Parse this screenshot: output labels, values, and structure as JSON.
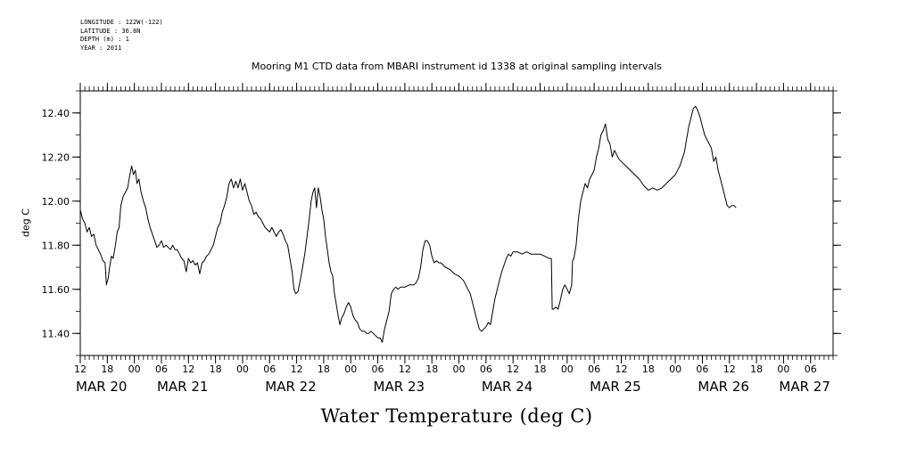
{
  "header": {
    "meta_lines": [
      "LONGITUDE : 122W(-122)",
      "LATITUDE : 36.8N",
      "DEPTH (m) : 1",
      "YEAR : 2011"
    ]
  },
  "chart_data": {
    "type": "line",
    "title": "Mooring M1 CTD data from MBARI instrument id 1338 at original sampling intervals",
    "xlabel": "Water Temperature (deg C)",
    "ylabel": "deg C",
    "ylim": [
      11.3,
      12.5
    ],
    "y_ticks": [
      11.4,
      11.6,
      11.8,
      12.0,
      12.2,
      12.4
    ],
    "y_tick_labels": [
      "11.40",
      "11.60",
      "11.80",
      "12.00",
      "12.20",
      "12.40"
    ],
    "x_unit": "hours from 2011-03-20 12:00",
    "xlim": [
      0,
      167
    ],
    "hour_ticks": [
      {
        "h": 0,
        "label": "12"
      },
      {
        "h": 6,
        "label": "18"
      },
      {
        "h": 12,
        "label": "00"
      },
      {
        "h": 18,
        "label": "06"
      },
      {
        "h": 24,
        "label": "12"
      },
      {
        "h": 30,
        "label": "18"
      },
      {
        "h": 36,
        "label": "00"
      },
      {
        "h": 42,
        "label": "06"
      },
      {
        "h": 48,
        "label": "12"
      },
      {
        "h": 54,
        "label": "18"
      },
      {
        "h": 60,
        "label": "00"
      },
      {
        "h": 66,
        "label": "06"
      },
      {
        "h": 72,
        "label": "12"
      },
      {
        "h": 78,
        "label": "18"
      },
      {
        "h": 84,
        "label": "00"
      },
      {
        "h": 90,
        "label": "06"
      },
      {
        "h": 96,
        "label": "12"
      },
      {
        "h": 102,
        "label": "18"
      },
      {
        "h": 108,
        "label": "00"
      },
      {
        "h": 114,
        "label": "06"
      },
      {
        "h": 120,
        "label": "12"
      },
      {
        "h": 126,
        "label": "18"
      },
      {
        "h": 132,
        "label": "00"
      },
      {
        "h": 138,
        "label": "06"
      },
      {
        "h": 144,
        "label": "12"
      },
      {
        "h": 150,
        "label": "18"
      },
      {
        "h": 156,
        "label": "00"
      },
      {
        "h": 162,
        "label": "06"
      }
    ],
    "date_labels": [
      {
        "h": 0,
        "label": "MAR 20"
      },
      {
        "h": 18,
        "label": "MAR 21"
      },
      {
        "h": 42,
        "label": "MAR 22"
      },
      {
        "h": 66,
        "label": "MAR 23"
      },
      {
        "h": 90,
        "label": "MAR 24"
      },
      {
        "h": 114,
        "label": "MAR 25"
      },
      {
        "h": 138,
        "label": "MAR 26"
      },
      {
        "h": 156,
        "label": "MAR 27"
      }
    ],
    "grid": false,
    "series": [
      {
        "color": "#000000",
        "points": [
          [
            0.0,
            11.96
          ],
          [
            0.5,
            11.92
          ],
          [
            1.0,
            11.9
          ],
          [
            1.5,
            11.86
          ],
          [
            2.0,
            11.88
          ],
          [
            2.5,
            11.84
          ],
          [
            3.0,
            11.85
          ],
          [
            3.5,
            11.8
          ],
          [
            4.0,
            11.78
          ],
          [
            4.5,
            11.76
          ],
          [
            5.0,
            11.73
          ],
          [
            5.5,
            11.72
          ],
          [
            5.8,
            11.62
          ],
          [
            6.2,
            11.65
          ],
          [
            6.5,
            11.7
          ],
          [
            6.9,
            11.75
          ],
          [
            7.3,
            11.74
          ],
          [
            7.8,
            11.8
          ],
          [
            8.2,
            11.86
          ],
          [
            8.6,
            11.88
          ],
          [
            9.0,
            11.98
          ],
          [
            9.5,
            12.02
          ],
          [
            10.0,
            12.04
          ],
          [
            10.5,
            12.06
          ],
          [
            11.0,
            12.12
          ],
          [
            11.4,
            12.16
          ],
          [
            11.8,
            12.12
          ],
          [
            12.2,
            12.14
          ],
          [
            12.6,
            12.08
          ],
          [
            13.0,
            12.1
          ],
          [
            13.5,
            12.04
          ],
          [
            14.0,
            12.0
          ],
          [
            14.5,
            11.97
          ],
          [
            15.0,
            11.92
          ],
          [
            15.5,
            11.88
          ],
          [
            16.0,
            11.85
          ],
          [
            16.5,
            11.82
          ],
          [
            17.0,
            11.79
          ],
          [
            17.5,
            11.8
          ],
          [
            18.0,
            11.82
          ],
          [
            18.5,
            11.79
          ],
          [
            19.0,
            11.8
          ],
          [
            19.5,
            11.79
          ],
          [
            20.0,
            11.78
          ],
          [
            20.5,
            11.8
          ],
          [
            21.0,
            11.78
          ],
          [
            21.5,
            11.78
          ],
          [
            22.0,
            11.76
          ],
          [
            22.5,
            11.74
          ],
          [
            23.0,
            11.73
          ],
          [
            23.5,
            11.68
          ],
          [
            24.0,
            11.74
          ],
          [
            24.5,
            11.72
          ],
          [
            25.0,
            11.73
          ],
          [
            25.5,
            11.71
          ],
          [
            26.0,
            11.72
          ],
          [
            26.5,
            11.67
          ],
          [
            27.0,
            11.72
          ],
          [
            27.5,
            11.73
          ],
          [
            28.0,
            11.75
          ],
          [
            28.5,
            11.76
          ],
          [
            29.0,
            11.78
          ],
          [
            29.5,
            11.8
          ],
          [
            30.0,
            11.84
          ],
          [
            30.5,
            11.88
          ],
          [
            31.0,
            11.9
          ],
          [
            31.5,
            11.95
          ],
          [
            32.0,
            11.98
          ],
          [
            32.5,
            12.02
          ],
          [
            33.0,
            12.08
          ],
          [
            33.5,
            12.1
          ],
          [
            34.0,
            12.06
          ],
          [
            34.5,
            12.09
          ],
          [
            35.0,
            12.06
          ],
          [
            35.5,
            12.1
          ],
          [
            36.0,
            12.05
          ],
          [
            36.5,
            12.08
          ],
          [
            37.0,
            12.04
          ],
          [
            37.5,
            12.0
          ],
          [
            38.0,
            11.98
          ],
          [
            38.5,
            11.94
          ],
          [
            39.0,
            11.95
          ],
          [
            39.5,
            11.93
          ],
          [
            40.0,
            11.92
          ],
          [
            40.5,
            11.9
          ],
          [
            41.0,
            11.88
          ],
          [
            41.5,
            11.87
          ],
          [
            42.0,
            11.86
          ],
          [
            42.5,
            11.88
          ],
          [
            43.0,
            11.86
          ],
          [
            43.5,
            11.84
          ],
          [
            44.0,
            11.86
          ],
          [
            44.5,
            11.87
          ],
          [
            45.0,
            11.85
          ],
          [
            45.5,
            11.82
          ],
          [
            46.0,
            11.8
          ],
          [
            46.5,
            11.74
          ],
          [
            47.0,
            11.68
          ],
          [
            47.4,
            11.6
          ],
          [
            47.8,
            11.58
          ],
          [
            48.3,
            11.59
          ],
          [
            48.8,
            11.64
          ],
          [
            49.3,
            11.7
          ],
          [
            49.8,
            11.76
          ],
          [
            50.3,
            11.84
          ],
          [
            50.8,
            11.92
          ],
          [
            51.2,
            12.0
          ],
          [
            51.6,
            12.04
          ],
          [
            52.0,
            12.06
          ],
          [
            52.4,
            11.97
          ],
          [
            52.8,
            12.06
          ],
          [
            53.2,
            12.02
          ],
          [
            53.6,
            11.96
          ],
          [
            54.0,
            11.92
          ],
          [
            54.4,
            11.84
          ],
          [
            54.8,
            11.78
          ],
          [
            55.2,
            11.72
          ],
          [
            55.6,
            11.68
          ],
          [
            56.0,
            11.66
          ],
          [
            56.4,
            11.58
          ],
          [
            56.8,
            11.53
          ],
          [
            57.2,
            11.48
          ],
          [
            57.6,
            11.44
          ],
          [
            58.0,
            11.47
          ],
          [
            58.5,
            11.49
          ],
          [
            59.0,
            11.52
          ],
          [
            59.5,
            11.54
          ],
          [
            60.0,
            11.52
          ],
          [
            60.5,
            11.48
          ],
          [
            61.0,
            11.46
          ],
          [
            61.5,
            11.45
          ],
          [
            62.0,
            11.42
          ],
          [
            62.5,
            11.41
          ],
          [
            63.0,
            11.41
          ],
          [
            63.5,
            11.4
          ],
          [
            64.0,
            11.4
          ],
          [
            64.5,
            11.41
          ],
          [
            65.0,
            11.4
          ],
          [
            65.5,
            11.39
          ],
          [
            66.0,
            11.38
          ],
          [
            66.5,
            11.38
          ],
          [
            67.0,
            11.36
          ],
          [
            67.5,
            11.42
          ],
          [
            68.0,
            11.46
          ],
          [
            68.5,
            11.5
          ],
          [
            69.0,
            11.58
          ],
          [
            69.5,
            11.6
          ],
          [
            70.0,
            11.61
          ],
          [
            70.5,
            11.6
          ],
          [
            71.0,
            11.61
          ],
          [
            72.0,
            11.61
          ],
          [
            73.0,
            11.62
          ],
          [
            74.0,
            11.62
          ],
          [
            74.5,
            11.63
          ],
          [
            75.0,
            11.65
          ],
          [
            75.5,
            11.7
          ],
          [
            76.0,
            11.78
          ],
          [
            76.5,
            11.82
          ],
          [
            77.0,
            11.82
          ],
          [
            77.5,
            11.8
          ],
          [
            78.0,
            11.75
          ],
          [
            78.5,
            11.72
          ],
          [
            79.0,
            11.73
          ],
          [
            79.5,
            11.72
          ],
          [
            80.0,
            11.72
          ],
          [
            81.0,
            11.7
          ],
          [
            82.0,
            11.69
          ],
          [
            83.0,
            11.67
          ],
          [
            84.0,
            11.66
          ],
          [
            85.0,
            11.64
          ],
          [
            85.5,
            11.62
          ],
          [
            86.0,
            11.6
          ],
          [
            86.5,
            11.58
          ],
          [
            87.0,
            11.54
          ],
          [
            87.5,
            11.5
          ],
          [
            88.0,
            11.46
          ],
          [
            88.5,
            11.42
          ],
          [
            89.0,
            11.41
          ],
          [
            89.5,
            11.42
          ],
          [
            90.0,
            11.43
          ],
          [
            90.5,
            11.45
          ],
          [
            91.0,
            11.44
          ],
          [
            91.5,
            11.5
          ],
          [
            92.0,
            11.56
          ],
          [
            92.5,
            11.6
          ],
          [
            93.0,
            11.64
          ],
          [
            93.5,
            11.68
          ],
          [
            94.0,
            11.71
          ],
          [
            94.5,
            11.74
          ],
          [
            95.0,
            11.76
          ],
          [
            95.5,
            11.75
          ],
          [
            96.0,
            11.77
          ],
          [
            97.0,
            11.77
          ],
          [
            98.0,
            11.76
          ],
          [
            99.0,
            11.77
          ],
          [
            100.0,
            11.76
          ],
          [
            101.0,
            11.76
          ],
          [
            102.0,
            11.76
          ],
          [
            103.0,
            11.75
          ],
          [
            104.0,
            11.74
          ],
          [
            104.5,
            11.74
          ],
          [
            104.7,
            11.51
          ],
          [
            105.0,
            11.51
          ],
          [
            105.5,
            11.52
          ],
          [
            106.0,
            11.51
          ],
          [
            106.5,
            11.55
          ],
          [
            107.0,
            11.6
          ],
          [
            107.5,
            11.62
          ],
          [
            108.0,
            11.6
          ],
          [
            108.5,
            11.58
          ],
          [
            109.0,
            11.62
          ],
          [
            109.2,
            11.73
          ],
          [
            109.5,
            11.74
          ],
          [
            110.0,
            11.8
          ],
          [
            110.5,
            11.92
          ],
          [
            111.0,
            12.0
          ],
          [
            111.5,
            12.04
          ],
          [
            112.0,
            12.08
          ],
          [
            112.5,
            12.06
          ],
          [
            113.0,
            12.1
          ],
          [
            113.5,
            12.12
          ],
          [
            114.0,
            12.14
          ],
          [
            114.5,
            12.2
          ],
          [
            115.0,
            12.24
          ],
          [
            115.5,
            12.3
          ],
          [
            116.0,
            12.32
          ],
          [
            116.5,
            12.35
          ],
          [
            117.0,
            12.28
          ],
          [
            117.5,
            12.26
          ],
          [
            118.0,
            12.2
          ],
          [
            118.5,
            12.23
          ],
          [
            119.0,
            12.21
          ],
          [
            119.5,
            12.19
          ],
          [
            120.0,
            12.18
          ],
          [
            121.0,
            12.16
          ],
          [
            122.0,
            12.14
          ],
          [
            123.0,
            12.12
          ],
          [
            124.0,
            12.1
          ],
          [
            125.0,
            12.07
          ],
          [
            126.0,
            12.05
          ],
          [
            127.0,
            12.06
          ],
          [
            128.0,
            12.05
          ],
          [
            129.0,
            12.06
          ],
          [
            130.0,
            12.08
          ],
          [
            131.0,
            12.1
          ],
          [
            132.0,
            12.12
          ],
          [
            133.0,
            12.16
          ],
          [
            134.0,
            12.22
          ],
          [
            134.5,
            12.28
          ],
          [
            135.0,
            12.34
          ],
          [
            135.5,
            12.38
          ],
          [
            136.0,
            12.42
          ],
          [
            136.5,
            12.43
          ],
          [
            137.0,
            12.41
          ],
          [
            137.5,
            12.38
          ],
          [
            138.0,
            12.34
          ],
          [
            138.5,
            12.3
          ],
          [
            139.0,
            12.28
          ],
          [
            139.5,
            12.26
          ],
          [
            140.0,
            12.24
          ],
          [
            140.5,
            12.18
          ],
          [
            141.0,
            12.2
          ],
          [
            141.5,
            12.14
          ],
          [
            142.0,
            12.1
          ],
          [
            142.5,
            12.06
          ],
          [
            143.0,
            12.02
          ],
          [
            143.5,
            11.98
          ],
          [
            144.0,
            11.97
          ],
          [
            144.5,
            11.98
          ],
          [
            145.0,
            11.98
          ],
          [
            145.5,
            11.97
          ]
        ]
      }
    ]
  }
}
